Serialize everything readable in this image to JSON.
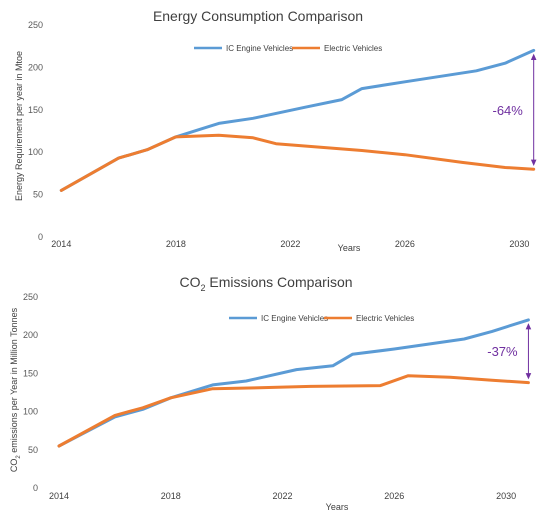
{
  "chart_data": [
    {
      "type": "line",
      "title": "Energy Consumption Comparison",
      "xlabel": "Years",
      "ylabel": "Energy Requirement per year in  Mtoe",
      "xlim": [
        2013.5,
        2031
      ],
      "ylim": [
        0,
        250
      ],
      "x_ticks": [
        2014,
        2018,
        2022,
        2026,
        2030
      ],
      "y_ticks": [
        0,
        50,
        100,
        150,
        200,
        250
      ],
      "grid": false,
      "legend_position": "top-center",
      "series": [
        {
          "name": "IC Engine Vehicles",
          "color": "#5B9BD5",
          "x": [
            2014,
            2016,
            2017,
            2018,
            2019.5,
            2020.7,
            2022.5,
            2023.8,
            2024.5,
            2026,
            2028.5,
            2029.5,
            2030.5
          ],
          "y": [
            55,
            93,
            103,
            118,
            134,
            140,
            153,
            162,
            175,
            183,
            196,
            205,
            220
          ]
        },
        {
          "name": "Electric Vehicles",
          "color": "#ED7D31",
          "x": [
            2014,
            2016,
            2017,
            2018,
            2019.5,
            2020.7,
            2021.5,
            2023,
            2024.5,
            2026,
            2028,
            2029.5,
            2030.5
          ],
          "y": [
            55,
            93,
            103,
            118,
            120,
            117,
            110,
            106,
            102,
            97,
            88,
            82,
            80
          ]
        }
      ],
      "annotations": [
        {
          "text": "-64%",
          "x": 2030.5,
          "y_top": 220,
          "y_bottom": 80,
          "color": "#7030A0"
        }
      ]
    },
    {
      "type": "line",
      "title_prefix": "CO",
      "title_sub": "2",
      "title_suffix": " Emissions Comparison",
      "xlabel": "Years",
      "ylabel_prefix": "CO",
      "ylabel_sub": "2",
      "ylabel_suffix": " emissions  per Year in Million Tonnes",
      "xlim": [
        2013.5,
        2031.5
      ],
      "ylim": [
        0,
        250
      ],
      "x_ticks": [
        2014,
        2018,
        2022,
        2026,
        2030
      ],
      "y_ticks": [
        0,
        50,
        100,
        150,
        200,
        250
      ],
      "grid": false,
      "legend_position": "top-center",
      "series": [
        {
          "name": "IC Engine Vehicles",
          "color": "#5B9BD5",
          "x": [
            2014,
            2016,
            2017,
            2018,
            2019.5,
            2020.7,
            2022.5,
            2023.8,
            2024.5,
            2026,
            2028.5,
            2029.5,
            2030.8
          ],
          "y": [
            55,
            93,
            103,
            118,
            135,
            140,
            155,
            160,
            175,
            182,
            195,
            205,
            220
          ]
        },
        {
          "name": "Electric Vehicles",
          "color": "#ED7D31",
          "x": [
            2014,
            2016,
            2017,
            2018,
            2019.5,
            2021,
            2023,
            2025.5,
            2026.5,
            2028,
            2029.5,
            2030.8
          ],
          "y": [
            55,
            95,
            105,
            118,
            130,
            131,
            133,
            134,
            147,
            145,
            141,
            138
          ]
        }
      ],
      "annotations": [
        {
          "text": "-37%",
          "x": 2030.8,
          "y_top": 220,
          "y_bottom": 138,
          "color": "#7030A0"
        }
      ]
    }
  ]
}
